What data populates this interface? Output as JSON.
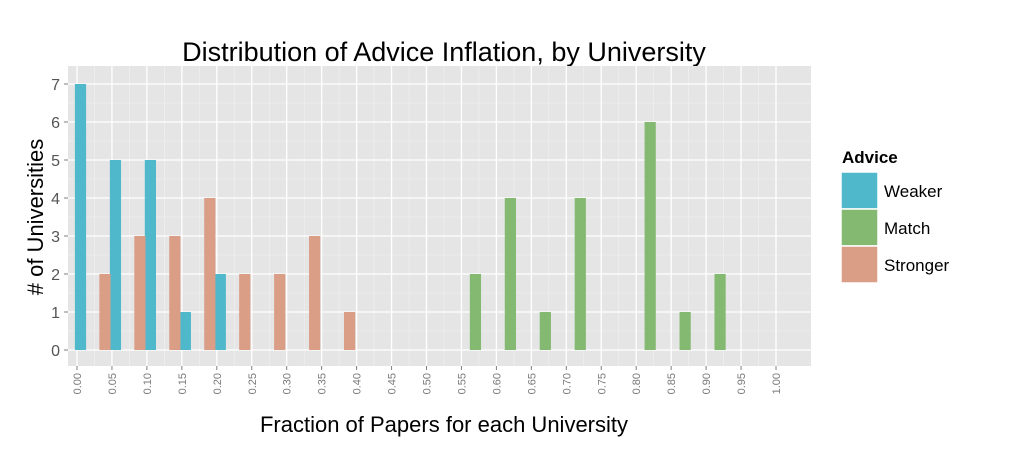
{
  "chart_data": {
    "type": "bar",
    "title": "Distribution of Advice Inflation, by University",
    "xlabel": "Fraction of Papers for each University",
    "ylabel": "# of Universities",
    "xlim": [
      0,
      1
    ],
    "ylim": [
      0,
      7
    ],
    "grid": true,
    "x_ticks": [
      "0.00",
      "0.05",
      "0.10",
      "0.15",
      "0.20",
      "0.25",
      "0.30",
      "0.35",
      "0.40",
      "0.45",
      "0.50",
      "0.55",
      "0.60",
      "0.65",
      "0.70",
      "0.75",
      "0.80",
      "0.85",
      "0.90",
      "0.95",
      "1.00"
    ],
    "y_ticks": [
      "0",
      "1",
      "2",
      "3",
      "4",
      "5",
      "6",
      "7"
    ],
    "legend": {
      "title": "Advice",
      "position": "right"
    },
    "series": [
      {
        "name": "Weaker",
        "color": "#4fb8cb",
        "points": [
          {
            "x": 0.005,
            "y": 7
          },
          {
            "x": 0.055,
            "y": 5
          },
          {
            "x": 0.105,
            "y": 5
          },
          {
            "x": 0.155,
            "y": 1
          },
          {
            "x": 0.205,
            "y": 2
          }
        ]
      },
      {
        "name": "Match",
        "color": "#84b971",
        "points": [
          {
            "x": 0.57,
            "y": 2
          },
          {
            "x": 0.62,
            "y": 4
          },
          {
            "x": 0.67,
            "y": 1
          },
          {
            "x": 0.72,
            "y": 4
          },
          {
            "x": 0.82,
            "y": 6
          },
          {
            "x": 0.87,
            "y": 1
          },
          {
            "x": 0.92,
            "y": 2
          }
        ]
      },
      {
        "name": "Stronger",
        "color": "#da9d86",
        "points": [
          {
            "x": 0.04,
            "y": 2
          },
          {
            "x": 0.09,
            "y": 3
          },
          {
            "x": 0.14,
            "y": 3
          },
          {
            "x": 0.19,
            "y": 4
          },
          {
            "x": 0.24,
            "y": 2
          },
          {
            "x": 0.29,
            "y": 2
          },
          {
            "x": 0.34,
            "y": 3
          },
          {
            "x": 0.39,
            "y": 1
          }
        ]
      }
    ]
  }
}
